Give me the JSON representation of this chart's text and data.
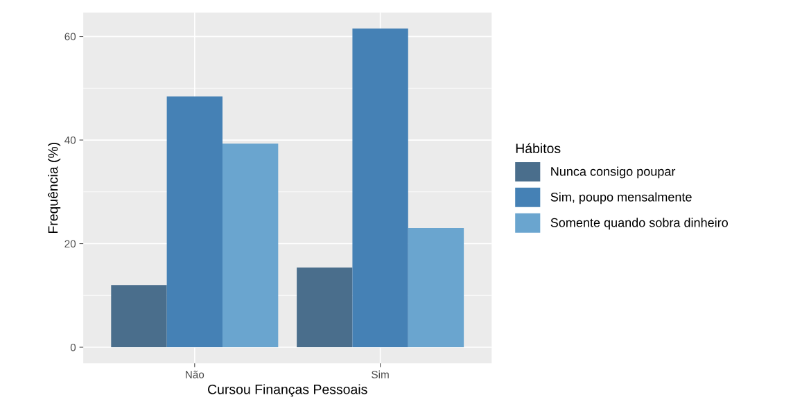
{
  "chart_data": {
    "type": "bar",
    "xlabel": "Cursou Finanças Pessoais",
    "ylabel": "Frequência (%)",
    "legend_title": "Hábitos",
    "categories": [
      "Não",
      "Sim"
    ],
    "series": [
      {
        "name": "Nunca consigo poupar",
        "color": "#4a6e8c",
        "values": [
          12.0,
          15.4
        ]
      },
      {
        "name": "Sim, poupo mensalmente",
        "color": "#4581b5",
        "values": [
          48.4,
          61.5
        ]
      },
      {
        "name": "Somente quando sobra dinheiro",
        "color": "#6aa5cf",
        "values": [
          39.3,
          23.0
        ]
      }
    ],
    "ylim": [
      -3.1,
      64.6
    ],
    "yticks": [
      0,
      20,
      40,
      60
    ],
    "grid": true,
    "legend": "right"
  }
}
